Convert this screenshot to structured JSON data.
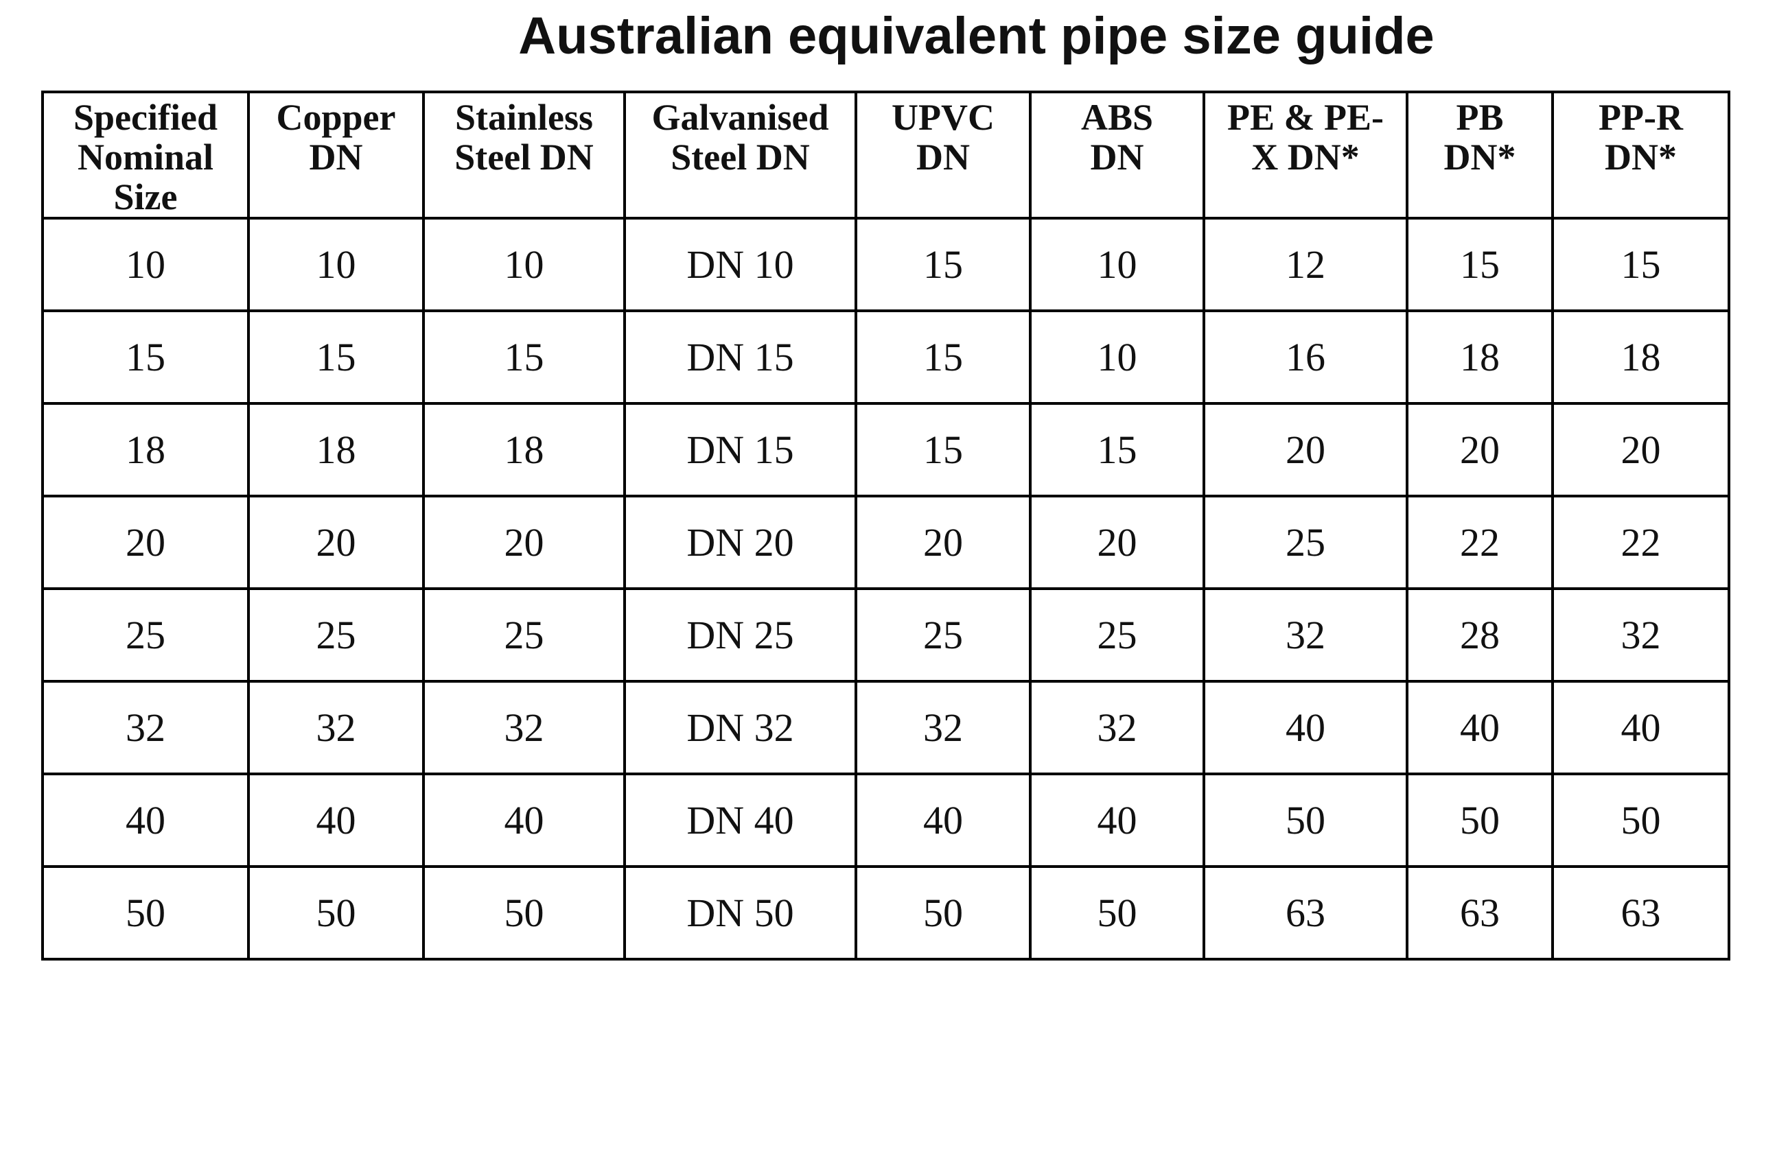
{
  "title": "Australian equivalent pipe size guide",
  "table": {
    "headers": [
      "Specified\nNominal\nSize",
      "Copper\nDN",
      "Stainless\nSteel   DN",
      "Galvanised\nSteel    DN",
      "UPVC\nDN",
      "ABS\nDN",
      "PE & PE-\nX   DN*",
      "PB\nDN*",
      "PP-R\nDN*"
    ],
    "rows": [
      [
        "10",
        "10",
        "10",
        "DN 10",
        "15",
        "10",
        "12",
        "15",
        "15"
      ],
      [
        "15",
        "15",
        "15",
        "DN 15",
        "15",
        "10",
        "16",
        "18",
        "18"
      ],
      [
        "18",
        "18",
        "18",
        "DN 15",
        "15",
        "15",
        "20",
        "20",
        "20"
      ],
      [
        "20",
        "20",
        "20",
        "DN 20",
        "20",
        "20",
        "25",
        "22",
        "22"
      ],
      [
        "25",
        "25",
        "25",
        "DN 25",
        "25",
        "25",
        "32",
        "28",
        "32"
      ],
      [
        "32",
        "32",
        "32",
        "DN 32",
        "32",
        "32",
        "40",
        "40",
        "40"
      ],
      [
        "40",
        "40",
        "40",
        "DN 40",
        "40",
        "40",
        "50",
        "50",
        "50"
      ],
      [
        "50",
        "50",
        "50",
        "DN 50",
        "50",
        "50",
        "63",
        "63",
        "63"
      ]
    ]
  }
}
